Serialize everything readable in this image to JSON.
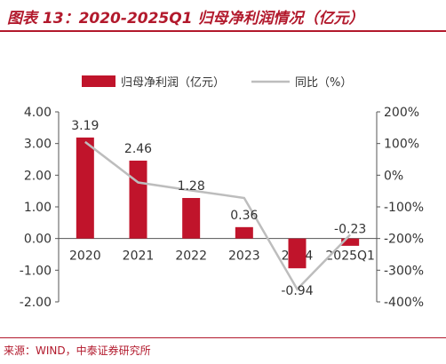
{
  "title": "图表 13：2020-2025Q1 归母净利润情况（亿元）",
  "source": "来源：WIND，中泰证券研究所",
  "colors": {
    "bar": "#c0142b",
    "line": "#bdbdbd",
    "title": "#b2192c",
    "text": "#333333"
  },
  "chart_data": {
    "type": "bar",
    "categories": [
      "2020",
      "2021",
      "2022",
      "2023",
      "2024",
      "2025Q1"
    ],
    "series": [
      {
        "name": "归母净利润（亿元）",
        "type": "bar",
        "axis": "left",
        "values": [
          3.19,
          2.46,
          1.28,
          0.36,
          -0.94,
          -0.23
        ],
        "labels": [
          "3.19",
          "2.46",
          "1.28",
          "0.36",
          "-0.94",
          "-0.23"
        ]
      },
      {
        "name": "同比（%）",
        "type": "line",
        "axis": "right",
        "values": [
          105,
          -23,
          -48,
          -72,
          -360,
          -188
        ]
      }
    ],
    "left_axis": {
      "min": -2,
      "max": 4,
      "ticks": [
        -2,
        -1,
        0,
        1,
        2,
        3,
        4
      ],
      "tick_labels": [
        "-2.00",
        "-1.00",
        "0.00",
        "1.00",
        "2.00",
        "3.00",
        "4.00"
      ]
    },
    "right_axis": {
      "min": -400,
      "max": 200,
      "ticks": [
        -400,
        -300,
        -200,
        -100,
        0,
        100,
        200
      ],
      "tick_labels": [
        "-400%",
        "-300%",
        "-200%",
        "-100%",
        "0%",
        "100%",
        "200%"
      ]
    },
    "legend_position": "top"
  }
}
